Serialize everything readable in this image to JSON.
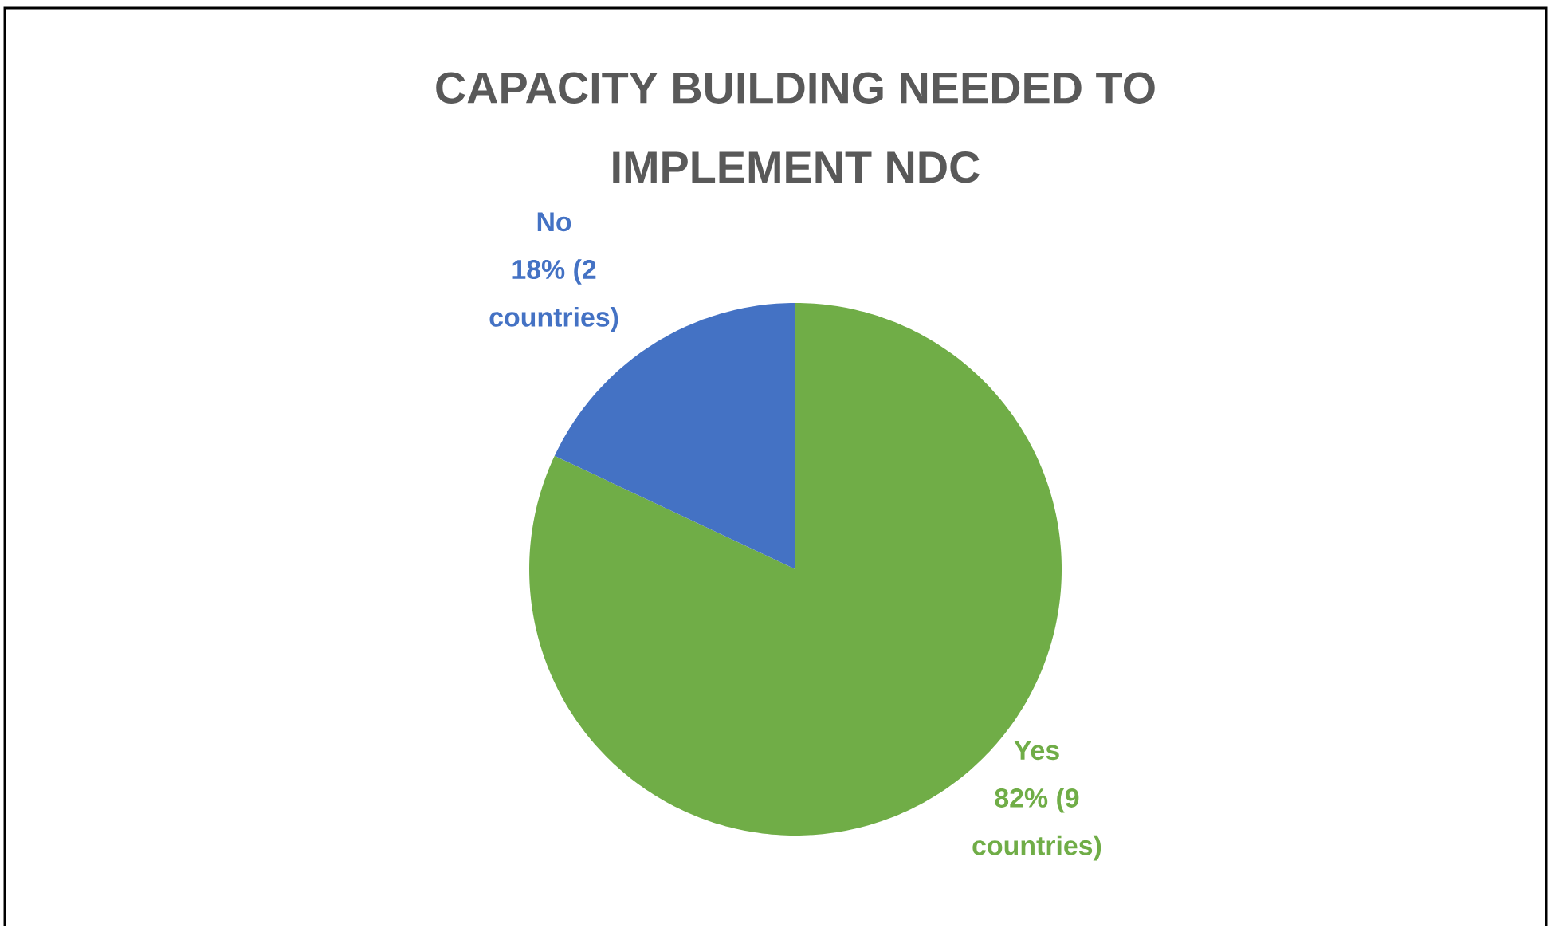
{
  "chart_data": {
    "type": "pie",
    "title": "CAPACITY BUILDING NEEDED TO IMPLEMENT NDC",
    "categories": [
      "Yes",
      "No"
    ],
    "values": [
      82,
      18
    ],
    "colors": [
      "#70ad47",
      "#4472c4"
    ],
    "value_labels": [
      "82% (9 countries)",
      "18% (2 countries)"
    ]
  }
}
